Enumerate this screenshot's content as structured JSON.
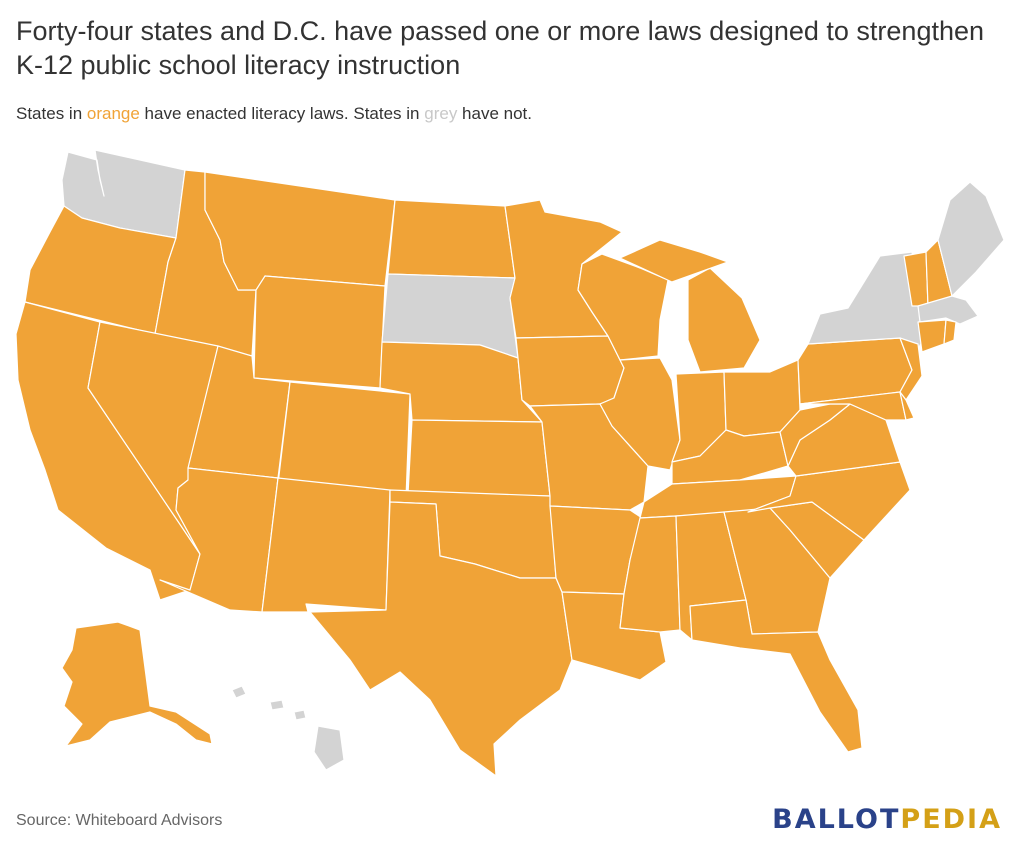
{
  "header": {
    "title": "Forty-four states and D.C. have passed one or more laws designed to strengthen K-12 public school literacy instruction",
    "subtitle_prefix": "States in ",
    "subtitle_orange": "orange",
    "subtitle_mid": " have enacted literacy laws. States in ",
    "subtitle_grey": "grey",
    "subtitle_suffix": " have not."
  },
  "legend_colors": {
    "enacted": "#f0a337",
    "not_enacted": "#d3d3d3",
    "border": "#ffffff"
  },
  "map": {
    "states_not_enacted": [
      "Washington",
      "South Dakota",
      "New York",
      "Massachusetts",
      "Maine",
      "Hawaii"
    ],
    "states_enacted_and_dc": "all others, including D.C."
  },
  "footer": {
    "source": "Source: Whiteboard Advisors",
    "logo_part1": "BALLOT",
    "logo_part2": "PEDIA"
  }
}
